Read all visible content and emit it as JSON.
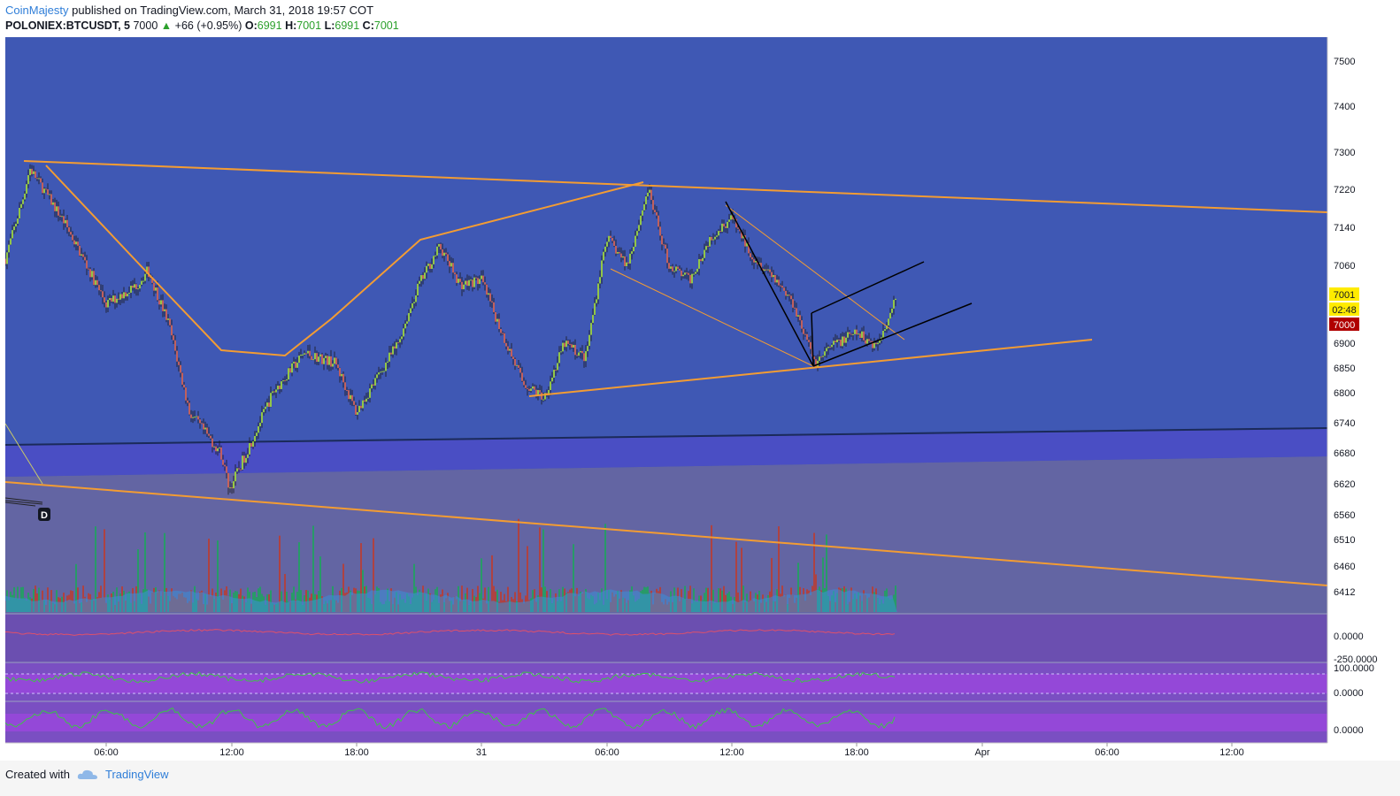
{
  "header": {
    "author": "CoinMajesty",
    "published_text": "published on TradingView.com, March 31, 2018 19:57 COT",
    "symbol": "POLONIEX:BTCUSDT, 5",
    "last": "7000",
    "change": "+66 (+0.95%)",
    "open_label": "O:",
    "open": "6991",
    "high_label": "H:",
    "high": "7001",
    "low_label": "L:",
    "low": "6991",
    "close_label": "C:",
    "close": "7001"
  },
  "footer": {
    "created_with": "Created with",
    "brand": "TradingView"
  },
  "colors": {
    "chart_bg": "#3f58b4",
    "bull": "#a6e22e",
    "bear": "#e0634a",
    "trendline": "#f39c33",
    "volume_up": "#1aa75a",
    "volume_down": "#c0392b"
  },
  "chart_data": {
    "type": "candlestick",
    "title": "",
    "price_axis": {
      "ticks": [
        "7500",
        "7400",
        "7300",
        "7220",
        "7140",
        "7060",
        "6900",
        "6850",
        "6800",
        "6740",
        "6680",
        "6620",
        "6560",
        "6510",
        "6460",
        "6412"
      ]
    },
    "time_axis": {
      "ticks": [
        "06:00",
        "12:00",
        "18:00",
        "31",
        "06:00",
        "12:00",
        "18:00",
        "Apr",
        "06:00",
        "12:00"
      ]
    },
    "price_labels": {
      "last_price": "7001",
      "countdown": "02:48",
      "secondary_price": "7000"
    },
    "marker": "D",
    "indicator_panes": [
      {
        "ticks": [
          "0.0000",
          "-250.0000"
        ]
      },
      {
        "ticks": [
          "100.0000",
          "0.0000"
        ]
      },
      {
        "ticks": [
          "0.0000"
        ]
      }
    ],
    "path_points": {
      "days": [
        "00:00",
        "01:00",
        "02:00",
        "02:20",
        "04:00",
        "06:00",
        "07:30",
        "08:00",
        "09:00",
        "10:00",
        "11:30",
        "11:55",
        "12:30",
        "14:00",
        "15:30",
        "17:00",
        "18:00",
        "20:00",
        "21:00",
        "22:00",
        "23:00",
        "00:00",
        "01:00",
        "02:00",
        "03:00",
        "04:00",
        "05:00",
        "06:00",
        "07:00",
        "08:00",
        "09:00",
        "10:00",
        "11:00",
        "12:00",
        "13:00",
        "14:00",
        "15:00",
        "16:00",
        "17:00",
        "18:00",
        "19:00",
        "19:57"
      ],
      "prices": [
        7130,
        7050,
        7200,
        7265,
        7150,
        6980,
        7020,
        7050,
        6940,
        6760,
        6680,
        6610,
        6660,
        6800,
        6880,
        6860,
        6760,
        6900,
        7020,
        7100,
        7020,
        7030,
        6920,
        6820,
        6790,
        6900,
        6870,
        7120,
        7060,
        7220,
        7060,
        7030,
        7120,
        7160,
        7080,
        7040,
        6980,
        6860,
        6900,
        6920,
        6895,
        7001
      ]
    }
  }
}
